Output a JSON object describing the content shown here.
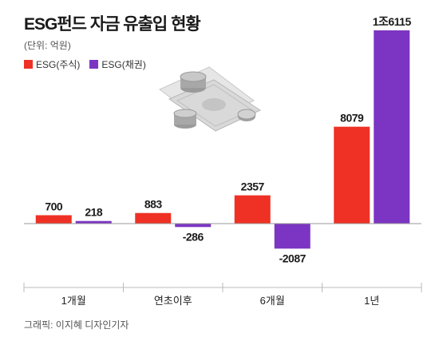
{
  "chart_data": {
    "type": "bar",
    "title": "ESG펀드 자금 유출입 현황",
    "unit": "(단위: 억원)",
    "categories": [
      "1개월",
      "연초이후",
      "6개월",
      "1년"
    ],
    "series": [
      {
        "name": "ESG(주식)",
        "color": "#ee3124",
        "values": [
          700,
          883,
          2357,
          8079
        ],
        "labels": [
          "700",
          "883",
          "2357",
          "8079"
        ]
      },
      {
        "name": "ESG(채권)",
        "color": "#7b35c2",
        "values": [
          218,
          -286,
          -2087,
          16115
        ],
        "labels": [
          "218",
          "-286",
          "-2087",
          "1조6115"
        ]
      }
    ],
    "legend_position": "top-left",
    "grid": false
  },
  "credit": "그래픽: 이지혜 디자인기자",
  "illustration": "money-stack-icon"
}
